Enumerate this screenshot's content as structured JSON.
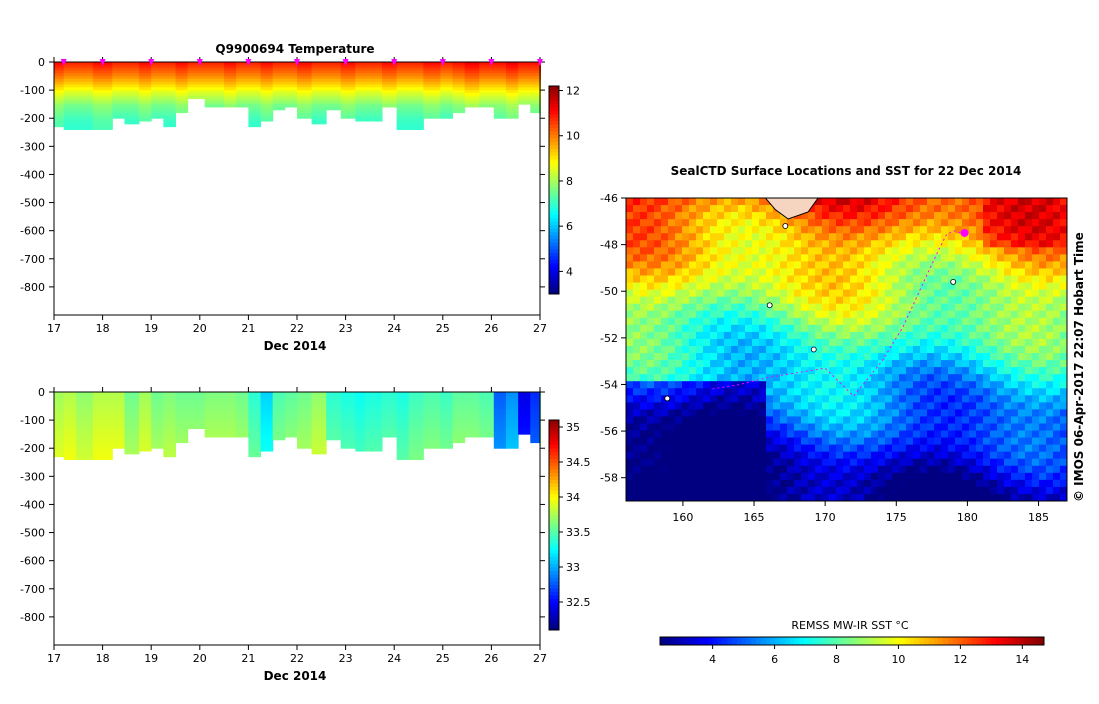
{
  "temperature_panel": {
    "title": "Q9900694  Temperature",
    "xlabel": "Dec 2014",
    "colorbar_ticks": [
      "4",
      "6",
      "8",
      "10",
      "12"
    ]
  },
  "salinity_panel": {
    "title": "",
    "xlabel": "Dec 2014",
    "colorbar_ticks": [
      "32.5",
      "33",
      "33.5",
      "34",
      "34.5",
      "35"
    ]
  },
  "map_panel": {
    "title": "SealCTD  Surface Locations and SST for 22 Dec 2014",
    "colorbar_label": "REMSS MW-IR SST °C",
    "colorbar_ticks": [
      "4",
      "6",
      "8",
      "10",
      "12",
      "14"
    ],
    "credit": "© IMOS 06-Apr-2017 22:07 Hobart Time"
  },
  "colors": {
    "cold": "#00008f",
    "warm": "#8f0000",
    "track": "#ff00ff",
    "land": "#f5d5c0"
  },
  "chart_data": [
    {
      "type": "heatmap",
      "title": "Q9900694  Temperature",
      "xlabel": "Dec 2014",
      "ylabel": "",
      "x_ticks": [
        "17",
        "18",
        "19",
        "20",
        "21",
        "22",
        "23",
        "24",
        "25",
        "26",
        "27"
      ],
      "y_ticks": [
        "0",
        "-100",
        "-200",
        "-300",
        "-400",
        "-500",
        "-600",
        "-700",
        "-800"
      ],
      "xlim": [
        17,
        27
      ],
      "ylim": [
        -900,
        0
      ],
      "colorbar_range": [
        3,
        12.2
      ],
      "profile_times": [
        17.0,
        17.2,
        17.45,
        17.8,
        18.2,
        18.45,
        18.75,
        19.0,
        19.25,
        19.5,
        19.75,
        20.1,
        20.5,
        20.75,
        21.0,
        21.25,
        21.5,
        21.75,
        22.0,
        22.3,
        22.6,
        22.9,
        23.2,
        23.4,
        23.75,
        24.05,
        24.3,
        24.6,
        24.95,
        25.2,
        25.45,
        25.75,
        26.05,
        26.3,
        26.55,
        26.8,
        27.0
      ],
      "profile_depths": [
        230,
        240,
        240,
        235,
        195,
        215,
        205,
        200,
        225,
        175,
        130,
        155,
        160,
        155,
        230,
        205,
        165,
        155,
        195,
        215,
        170,
        200,
        210,
        210,
        160,
        235,
        235,
        200,
        195,
        175,
        160,
        155,
        200,
        200,
        150,
        175,
        185
      ],
      "temperature_by_depth": {
        "depth_m": [
          0,
          -50,
          -100,
          -150,
          -200,
          -250
        ],
        "values_deg_c": [
          10.8,
          9.8,
          8.6,
          7.6,
          7.1,
          6.9
        ]
      },
      "surface_markers": [
        "17.2",
        "18",
        "19",
        "20",
        "21",
        "22",
        "23",
        "24",
        "25",
        "26",
        "27"
      ]
    },
    {
      "type": "heatmap",
      "title": "",
      "xlabel": "Dec 2014",
      "ylabel": "",
      "x_ticks": [
        "17",
        "18",
        "19",
        "20",
        "21",
        "22",
        "23",
        "24",
        "25",
        "26",
        "27"
      ],
      "y_ticks": [
        "0",
        "-100",
        "-200",
        "-300",
        "-400",
        "-500",
        "-600",
        "-700",
        "-800"
      ],
      "xlim": [
        17,
        27
      ],
      "ylim": [
        -900,
        0
      ],
      "colorbar_range": [
        32.1,
        35.1
      ],
      "profile_salinity": [
        33.7,
        33.75,
        33.65,
        33.75,
        33.75,
        33.55,
        33.7,
        33.55,
        33.6,
        33.55,
        33.55,
        33.6,
        33.6,
        33.55,
        33.35,
        33.1,
        33.45,
        33.5,
        33.55,
        33.65,
        33.35,
        33.3,
        33.25,
        33.3,
        33.35,
        33.3,
        33.4,
        33.45,
        33.4,
        33.5,
        33.5,
        33.45,
        32.75,
        32.9,
        32.4,
        32.6,
        33.5
      ]
    },
    {
      "type": "heatmap",
      "title": "SealCTD  Surface Locations and SST for 22 Dec 2014",
      "xlabel": "",
      "ylabel": "",
      "x_ticks": [
        "160",
        "165",
        "170",
        "175",
        "180",
        "185"
      ],
      "y_ticks": [
        "-46",
        "-48",
        "-50",
        "-52",
        "-54",
        "-56",
        "-58"
      ],
      "xlim": [
        156,
        187
      ],
      "ylim": [
        -59,
        -46
      ],
      "colorbar_label": "REMSS MW-IR SST °C",
      "colorbar_ticks": [
        4,
        6,
        8,
        10,
        12,
        14
      ],
      "colorbar_range": [
        2.3,
        14.7
      ],
      "track_lon": [
        179.5,
        179.0,
        178.5,
        178.0,
        177.0,
        175.5,
        174.0,
        172.0,
        170.0,
        168.0,
        166.0,
        164.0,
        162.0
      ],
      "track_lat": [
        -47.5,
        -47.4,
        -47.6,
        -48.2,
        -49.5,
        -51.5,
        -53.0,
        -54.5,
        -53.3,
        -53.5,
        -53.7,
        -54.0,
        -54.2
      ],
      "surface_location": [
        179.8,
        -47.5
      ]
    }
  ]
}
